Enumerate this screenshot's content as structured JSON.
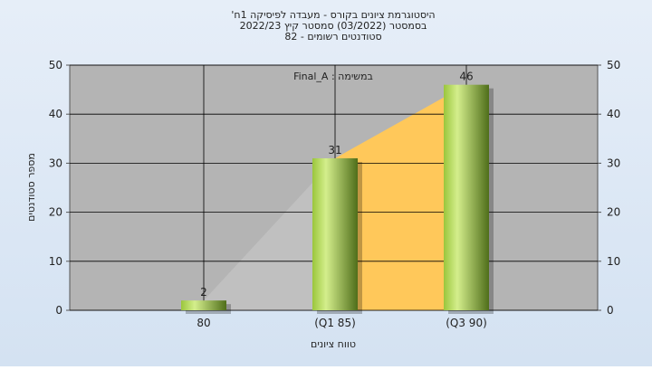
{
  "chart_data": {
    "type": "bar",
    "title": [
      "היסטוגרמת ציונים בקורס - מעבדה לפיסיקה 1ח'",
      "בסמסטר (03/2022) סמסטר קיץ 2022/23",
      "סטודנטים רשומים - 82"
    ],
    "annotation": "במשימה : Final_A",
    "ylabel": "מספר סטודנטים",
    "xlabel": "טווח ציונים",
    "categories": [
      "80",
      "(Q1 85)",
      "(Q3 90)"
    ],
    "values": [
      2,
      31,
      46
    ],
    "area_colors": [
      "#c0c0c0",
      "#ffc85a"
    ],
    "ylim": [
      0,
      50
    ],
    "yticks": [
      0,
      10,
      20,
      30,
      40,
      50
    ],
    "y2lim": [
      0,
      50
    ],
    "y2ticks": [
      0,
      10,
      20,
      30,
      40,
      50
    ],
    "grid": true
  }
}
